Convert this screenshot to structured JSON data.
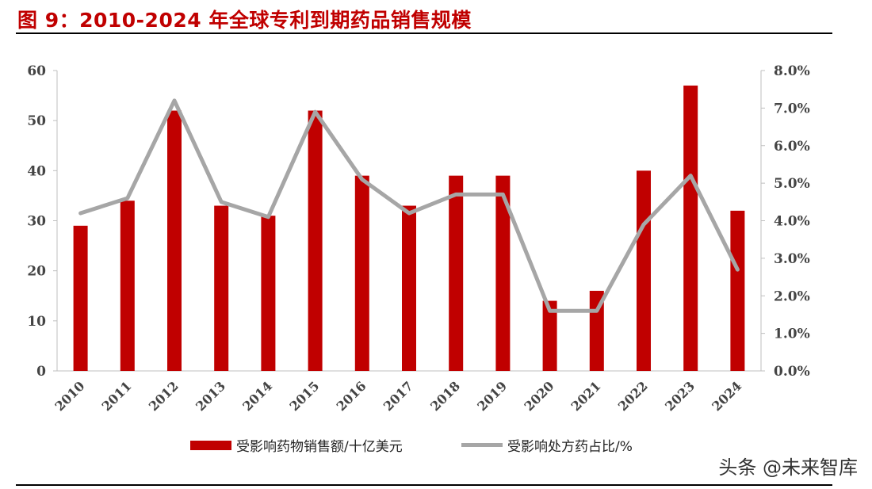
{
  "figure": {
    "title": "图 9：2010-2024 年全球专利到期药品销售规模"
  },
  "watermark": "头条 @未来智库",
  "colors": {
    "bar": "#c00000",
    "line": "#a6a6a6",
    "title": "#c00000",
    "axis": "#bfbfbf"
  },
  "chart_data": {
    "type": "bar",
    "categories": [
      "2010",
      "2011",
      "2012",
      "2013",
      "2014",
      "2015",
      "2016",
      "2017",
      "2018",
      "2019",
      "2020",
      "2021",
      "2022",
      "2023",
      "2024"
    ],
    "series": [
      {
        "name": "受影响药物销售额/十亿美元",
        "type": "bar",
        "axis": "left",
        "values": [
          29,
          34,
          52,
          33,
          31,
          52,
          39,
          33,
          39,
          39,
          14,
          16,
          40,
          57,
          32
        ]
      },
      {
        "name": "受影响处方药占比/%",
        "type": "line",
        "axis": "right",
        "values": [
          4.2,
          4.6,
          7.2,
          4.5,
          4.1,
          6.9,
          5.1,
          4.2,
          4.7,
          4.7,
          1.6,
          1.6,
          3.9,
          5.2,
          2.7
        ]
      }
    ],
    "y_left": {
      "ylim": [
        0,
        60
      ],
      "ticks": [
        "0",
        "10",
        "20",
        "30",
        "40",
        "50",
        "60"
      ]
    },
    "y_right": {
      "ylim": [
        0,
        8
      ],
      "ticks": [
        "0.0%",
        "1.0%",
        "2.0%",
        "3.0%",
        "4.0%",
        "5.0%",
        "6.0%",
        "7.0%",
        "8.0%"
      ]
    },
    "grid": false,
    "legend_position": "bottom"
  }
}
